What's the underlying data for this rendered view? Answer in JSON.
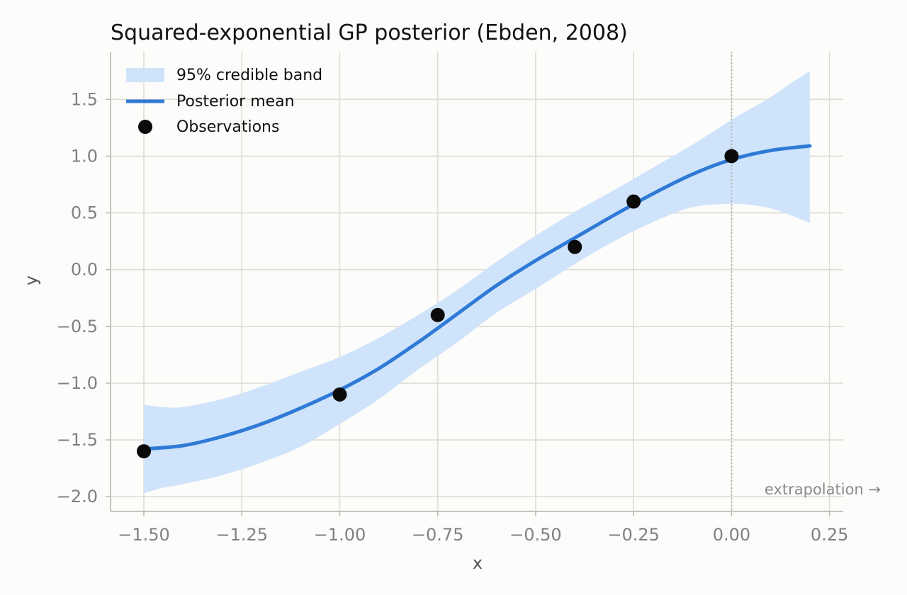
{
  "chart_data": {
    "type": "line",
    "title": "Squared-exponential GP posterior (Ebden, 2008)",
    "xlabel": "x",
    "ylabel": "y",
    "xlim": [
      -1.585,
      0.285
    ],
    "ylim": [
      -2.13,
      1.92
    ],
    "xticks": [
      -1.5,
      -1.25,
      -1.0,
      -0.75,
      -0.5,
      -0.25,
      0.0,
      0.25
    ],
    "xtick_labels": [
      "−1.50",
      "−1.25",
      "−1.00",
      "−0.75",
      "−0.50",
      "−0.25",
      "0.00",
      "0.25"
    ],
    "yticks": [
      1.5,
      1.0,
      0.5,
      0.0,
      -0.5,
      -1.0,
      -1.5,
      -2.0
    ],
    "ytick_labels": [
      "1.5",
      "1.0",
      "0.5",
      "0.0",
      "−0.5",
      "−1.0",
      "−1.5",
      "−2.0"
    ],
    "grid": true,
    "legend_position": "top-left",
    "legend": [
      {
        "label": "95% credible band",
        "kind": "band"
      },
      {
        "label": "Posterior mean",
        "kind": "line"
      },
      {
        "label": "Observations",
        "kind": "marker"
      }
    ],
    "series": [
      {
        "name": "Posterior mean",
        "kind": "line",
        "color": "#2f7ad6",
        "x": [
          -1.5,
          -1.4,
          -1.3,
          -1.2,
          -1.1,
          -1.0,
          -0.9,
          -0.8,
          -0.7,
          -0.6,
          -0.5,
          -0.4,
          -0.3,
          -0.2,
          -0.1,
          0.0,
          0.1,
          0.2
        ],
        "y": [
          -1.58,
          -1.55,
          -1.47,
          -1.36,
          -1.22,
          -1.06,
          -0.87,
          -0.64,
          -0.39,
          -0.14,
          0.08,
          0.28,
          0.48,
          0.67,
          0.84,
          0.97,
          1.05,
          1.09
        ]
      },
      {
        "name": "95% credible band",
        "kind": "band",
        "color": "#cfe3fb",
        "x": [
          -1.5,
          -1.45,
          -1.4,
          -1.3,
          -1.2,
          -1.1,
          -1.0,
          -0.9,
          -0.8,
          -0.7,
          -0.6,
          -0.5,
          -0.4,
          -0.3,
          -0.2,
          -0.1,
          0.0,
          0.05,
          0.1,
          0.15,
          0.2
        ],
        "upper": [
          -1.19,
          -1.21,
          -1.21,
          -1.14,
          -1.03,
          -0.9,
          -0.77,
          -0.6,
          -0.4,
          -0.18,
          0.07,
          0.3,
          0.51,
          0.7,
          0.9,
          1.1,
          1.32,
          1.42,
          1.52,
          1.64,
          1.75
        ],
        "lower": [
          -1.97,
          -1.92,
          -1.89,
          -1.81,
          -1.7,
          -1.56,
          -1.36,
          -1.14,
          -0.88,
          -0.64,
          -0.38,
          -0.17,
          0.05,
          0.25,
          0.42,
          0.55,
          0.58,
          0.57,
          0.54,
          0.48,
          0.41
        ]
      },
      {
        "name": "Observations",
        "kind": "scatter",
        "color": "#0a0a0a",
        "x": [
          -1.5,
          -1.0,
          -0.75,
          -0.4,
          -0.25,
          0.0
        ],
        "y": [
          -1.6,
          -1.1,
          -0.4,
          0.2,
          0.6,
          1.0
        ]
      }
    ],
    "vline": {
      "x": 0.0,
      "style": "dotted"
    },
    "annotation": {
      "text": "extrapolation →",
      "position": "bottom-right"
    }
  }
}
